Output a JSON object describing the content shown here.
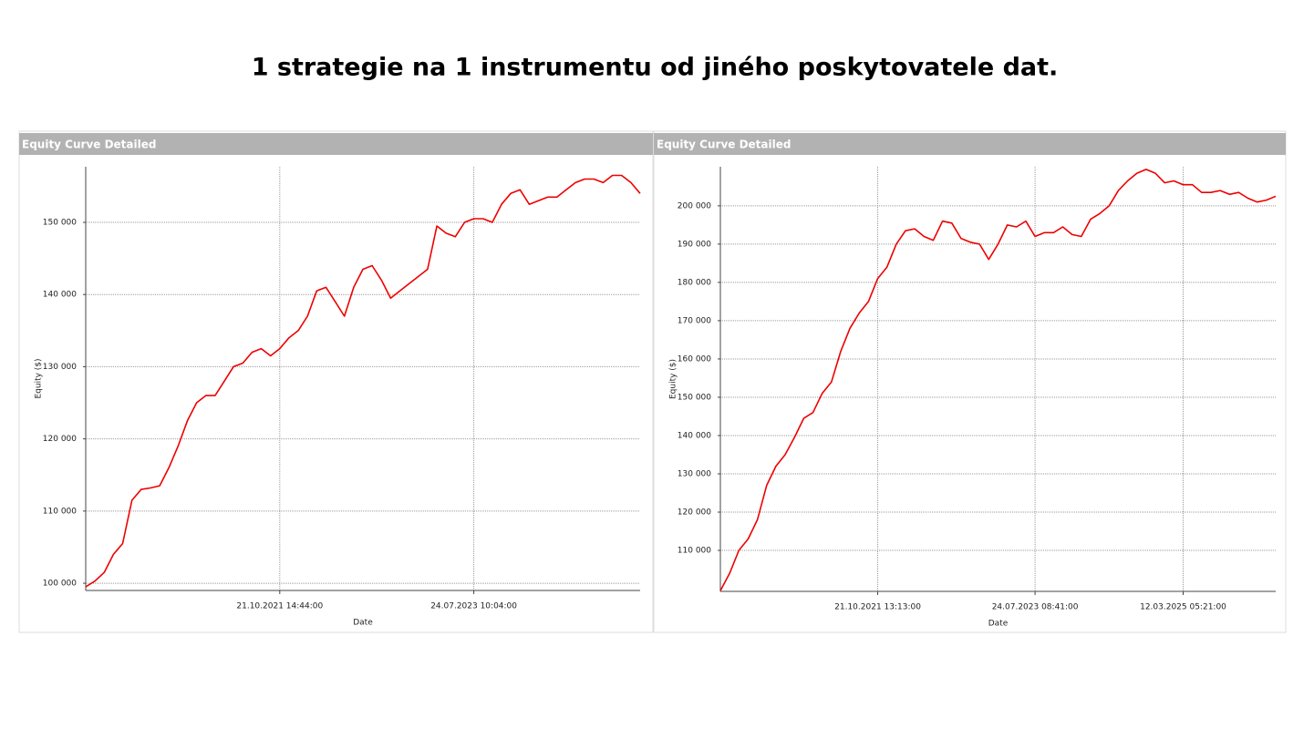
{
  "title": "1 strategie na 1 instrumentu od jiného poskytovatele dat.",
  "chart_data": [
    {
      "type": "line",
      "panel_title": "Equity Curve Detailed",
      "ylabel": "Equity ($)",
      "xlabel": "Date",
      "color": "#ee0000",
      "grid": true,
      "categories": [
        null,
        null,
        null,
        null,
        null,
        null,
        null,
        null,
        null,
        null,
        null,
        null,
        null,
        null,
        null,
        null,
        null,
        null,
        null,
        null,
        null,
        "21.10.2021 14:44:00",
        null,
        null,
        null,
        null,
        null,
        null,
        null,
        null,
        null,
        null,
        null,
        null,
        null,
        null,
        null,
        null,
        null,
        null,
        null,
        null,
        "24.07.2023 10:04:00",
        null,
        null,
        null,
        null,
        null,
        null,
        null,
        null,
        null,
        null,
        null,
        null,
        null,
        null,
        null,
        null,
        null,
        null
      ],
      "values": [
        99500,
        100300,
        101500,
        104000,
        105500,
        111500,
        113000,
        113200,
        113500,
        116000,
        119000,
        122500,
        125000,
        126000,
        126000,
        128000,
        130000,
        130500,
        132000,
        132500,
        131500,
        132500,
        134000,
        135000,
        137000,
        140500,
        141000,
        139000,
        137000,
        141000,
        143500,
        144000,
        142000,
        139500,
        140500,
        141500,
        142500,
        143500,
        149500,
        148500,
        148000,
        150000,
        150500,
        150500,
        150000,
        152500,
        154000,
        154500,
        152500,
        153000,
        153500,
        153500,
        154500,
        155500,
        156000,
        156000,
        155500,
        156500,
        156500,
        155500,
        154000
      ],
      "ylim": [
        99000,
        157700
      ],
      "yticks": [
        {
          "value": 100000,
          "label": "100 000"
        },
        {
          "value": 110000,
          "label": "110 000"
        },
        {
          "value": 120000,
          "label": "120 000"
        },
        {
          "value": 130000,
          "label": "130 000"
        },
        {
          "value": 140000,
          "label": "140 000"
        },
        {
          "value": 150000,
          "label": "150 000"
        }
      ]
    },
    {
      "type": "line",
      "panel_title": "Equity Curve Detailed",
      "ylabel": "Equity ($)",
      "xlabel": "Date",
      "color": "#ee0000",
      "grid": true,
      "categories": [
        null,
        null,
        null,
        null,
        null,
        null,
        null,
        null,
        null,
        null,
        null,
        null,
        null,
        null,
        null,
        null,
        null,
        "21.10.2021 13:13:00",
        null,
        null,
        null,
        null,
        null,
        null,
        null,
        null,
        null,
        null,
        null,
        null,
        null,
        null,
        null,
        null,
        "24.07.2023 08:41:00",
        null,
        null,
        null,
        null,
        null,
        null,
        null,
        null,
        null,
        null,
        null,
        null,
        null,
        null,
        null,
        "12.03.2025 05:21:00",
        null,
        null,
        null,
        null,
        null,
        null,
        null,
        null,
        null,
        null
      ],
      "values": [
        99500,
        104000,
        110000,
        113000,
        118000,
        127000,
        132000,
        135000,
        139500,
        144500,
        146000,
        151000,
        154000,
        162000,
        168000,
        172000,
        175000,
        181000,
        184000,
        190000,
        193500,
        194000,
        192000,
        191000,
        196000,
        195500,
        191500,
        190500,
        190000,
        186000,
        190000,
        195000,
        194500,
        196000,
        192000,
        193000,
        193000,
        194500,
        192500,
        192000,
        196500,
        198000,
        200000,
        204000,
        206500,
        208500,
        209500,
        208500,
        206000,
        206500,
        205500,
        205500,
        203500,
        203500,
        204000,
        203000,
        203500,
        202000,
        201000,
        201500,
        202500
      ],
      "ylim": [
        99300,
        210200
      ],
      "yticks": [
        {
          "value": 110000,
          "label": "110 000"
        },
        {
          "value": 120000,
          "label": "120 000"
        },
        {
          "value": 130000,
          "label": "130 000"
        },
        {
          "value": 140000,
          "label": "140 000"
        },
        {
          "value": 150000,
          "label": "150 000"
        },
        {
          "value": 160000,
          "label": "160 000"
        },
        {
          "value": 170000,
          "label": "170 000"
        },
        {
          "value": 180000,
          "label": "180 000"
        },
        {
          "value": 190000,
          "label": "190 000"
        },
        {
          "value": 200000,
          "label": "200 000"
        }
      ]
    }
  ]
}
